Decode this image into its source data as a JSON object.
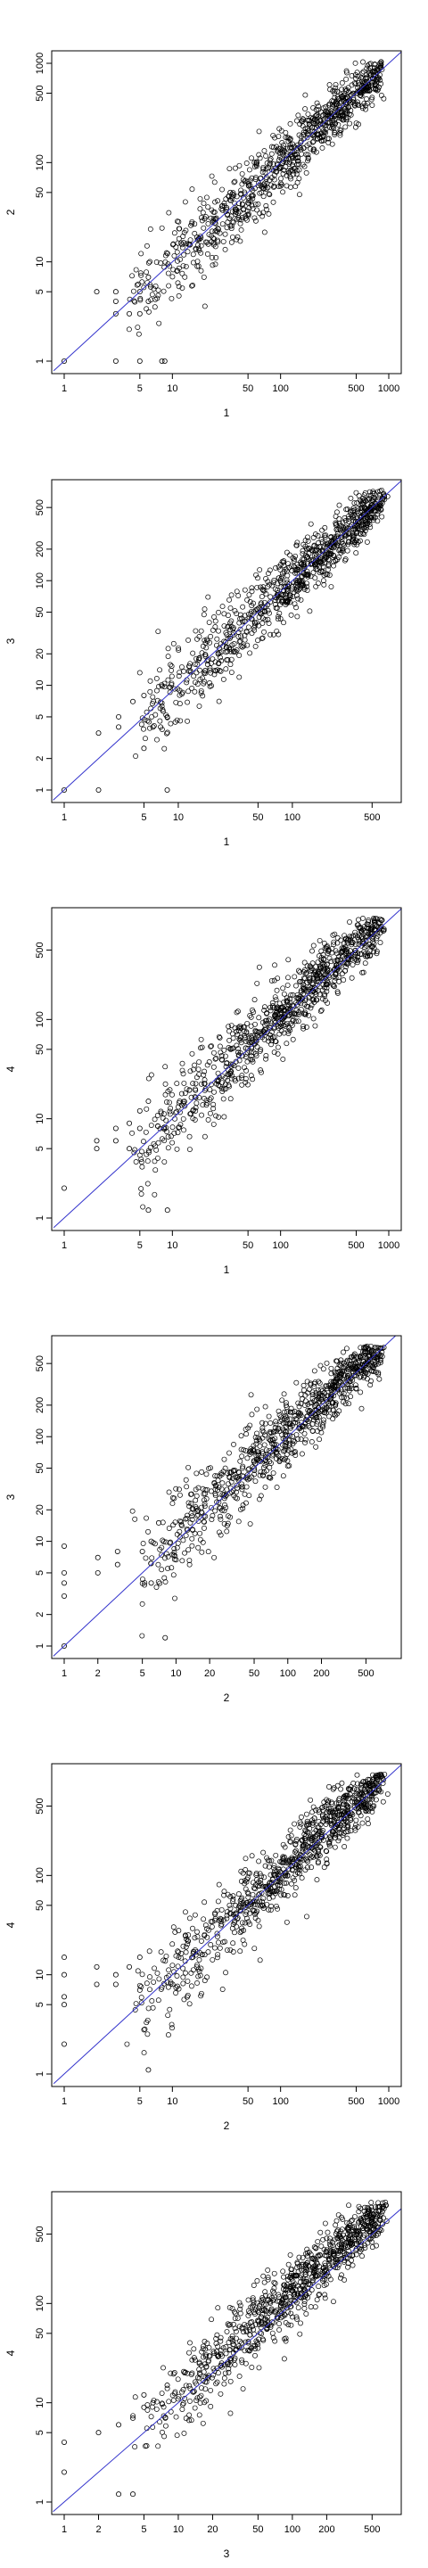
{
  "chart_data": [
    {
      "type": "scatter",
      "scale": "log",
      "title": "",
      "xlabel": "1",
      "ylabel": "2",
      "xlim": [
        1,
        1000
      ],
      "ylim": [
        1,
        1000
      ],
      "xticks": [
        1,
        5,
        10,
        50,
        100,
        500,
        1000
      ],
      "yticks": [
        1,
        5,
        10,
        50,
        100,
        500,
        1000
      ],
      "reference_line": "y = x",
      "reference_line_color": "#3333cc",
      "point_color": "#000000",
      "grid": false,
      "legend": "none",
      "trend": {
        "slope": 1.0,
        "intercept": 0.0,
        "spread": 0.22
      },
      "n_points": 900,
      "outliers": [
        [
          1,
          1
        ],
        [
          3,
          1
        ],
        [
          5,
          1
        ],
        [
          8,
          1
        ],
        [
          8.5,
          1
        ],
        [
          2,
          5
        ],
        [
          3,
          5
        ],
        [
          3,
          4
        ],
        [
          5,
          5
        ],
        [
          6,
          7
        ],
        [
          5,
          3
        ],
        [
          3,
          3
        ],
        [
          4,
          3
        ],
        [
          6,
          4
        ]
      ]
    },
    {
      "type": "scatter",
      "scale": "log",
      "title": "",
      "xlabel": "1",
      "ylabel": "3",
      "xlim": [
        1,
        700
      ],
      "ylim": [
        1,
        700
      ],
      "xticks": [
        1,
        5,
        10,
        50,
        100,
        500
      ],
      "yticks": [
        1,
        2,
        5,
        10,
        20,
        50,
        100,
        200,
        500
      ],
      "reference_line": "y = x",
      "reference_line_color": "#3333cc",
      "point_color": "#000000",
      "grid": false,
      "legend": "none",
      "trend": {
        "slope": 1.0,
        "intercept": 0.0,
        "spread": 0.2
      },
      "n_points": 900,
      "outliers": [
        [
          1,
          1
        ],
        [
          2,
          1
        ],
        [
          8,
          1
        ],
        [
          2,
          3.5
        ],
        [
          3,
          5
        ],
        [
          3,
          4
        ],
        [
          4,
          7
        ],
        [
          5,
          8
        ],
        [
          7,
          4
        ],
        [
          6,
          4
        ],
        [
          8,
          5
        ],
        [
          5,
          2.5
        ]
      ]
    },
    {
      "type": "scatter",
      "scale": "log",
      "title": "",
      "xlabel": "1",
      "ylabel": "4",
      "xlim": [
        1,
        1000
      ],
      "ylim": [
        1,
        1000
      ],
      "xticks": [
        1,
        5,
        10,
        50,
        100,
        500,
        1000
      ],
      "yticks": [
        1,
        5,
        10,
        50,
        100,
        500
      ],
      "reference_line": "y = x",
      "reference_line_color": "#3333cc",
      "point_color": "#000000",
      "grid": false,
      "legend": "none",
      "trend": {
        "slope": 1.02,
        "intercept": 0.0,
        "spread": 0.22
      },
      "n_points": 900,
      "outliers": [
        [
          1,
          2
        ],
        [
          2,
          5
        ],
        [
          2,
          6
        ],
        [
          3,
          8
        ],
        [
          3,
          6
        ],
        [
          4,
          9
        ],
        [
          5,
          12
        ],
        [
          6,
          15
        ],
        [
          6,
          1.2
        ],
        [
          9,
          1.2
        ],
        [
          4,
          5
        ],
        [
          5,
          8
        ]
      ]
    },
    {
      "type": "scatter",
      "scale": "log",
      "title": "",
      "xlabel": "2",
      "ylabel": "3",
      "xlim": [
        1,
        800
      ],
      "ylim": [
        1,
        700
      ],
      "xticks": [
        1,
        2,
        5,
        10,
        20,
        50,
        100,
        200,
        500
      ],
      "yticks": [
        1,
        2,
        5,
        10,
        20,
        50,
        100,
        200,
        500
      ],
      "reference_line": "y = x",
      "reference_line_color": "#3333cc",
      "point_color": "#000000",
      "grid": false,
      "legend": "none",
      "trend": {
        "slope": 1.0,
        "intercept": 0.04,
        "spread": 0.22
      },
      "n_points": 900,
      "outliers": [
        [
          1,
          1
        ],
        [
          1,
          3
        ],
        [
          1,
          4
        ],
        [
          1,
          5
        ],
        [
          1,
          9
        ],
        [
          2,
          5
        ],
        [
          2,
          7
        ],
        [
          3,
          6
        ],
        [
          3,
          8
        ],
        [
          5,
          8
        ],
        [
          6,
          4
        ],
        [
          8,
          1.2
        ],
        [
          6,
          10
        ],
        [
          7,
          15
        ]
      ]
    },
    {
      "type": "scatter",
      "scale": "log",
      "title": "",
      "xlabel": "2",
      "ylabel": "4",
      "xlim": [
        1,
        1000
      ],
      "ylim": [
        1,
        1000
      ],
      "xticks": [
        1,
        5,
        10,
        50,
        100,
        500,
        1000
      ],
      "yticks": [
        1,
        5,
        10,
        50,
        100,
        500
      ],
      "reference_line": "y = x",
      "reference_line_color": "#3333cc",
      "point_color": "#000000",
      "grid": false,
      "legend": "none",
      "trend": {
        "slope": 1.02,
        "intercept": 0.0,
        "spread": 0.22
      },
      "n_points": 900,
      "outliers": [
        [
          1,
          2
        ],
        [
          1,
          5
        ],
        [
          1,
          6
        ],
        [
          1,
          10
        ],
        [
          1,
          15
        ],
        [
          2,
          8
        ],
        [
          2,
          12
        ],
        [
          3,
          8
        ],
        [
          3,
          10
        ],
        [
          4,
          12
        ],
        [
          5,
          15
        ],
        [
          6,
          1.1
        ],
        [
          5,
          7
        ]
      ]
    },
    {
      "type": "scatter",
      "scale": "log",
      "title": "",
      "xlabel": "3",
      "ylabel": "4",
      "xlim": [
        1,
        700
      ],
      "ylim": [
        1,
        1000
      ],
      "xticks": [
        1,
        2,
        5,
        10,
        20,
        50,
        100,
        200,
        500
      ],
      "yticks": [
        1,
        5,
        10,
        50,
        100,
        500
      ],
      "reference_line": "y = x",
      "reference_line_color": "#3333cc",
      "point_color": "#000000",
      "grid": false,
      "legend": "none",
      "trend": {
        "slope": 1.03,
        "intercept": 0.05,
        "spread": 0.22
      },
      "n_points": 900,
      "outliers": [
        [
          1,
          2
        ],
        [
          1,
          4
        ],
        [
          2,
          5
        ],
        [
          3,
          1.2
        ],
        [
          4,
          1.2
        ],
        [
          3,
          6
        ],
        [
          4,
          7
        ],
        [
          5,
          9
        ],
        [
          5,
          12
        ],
        [
          6,
          10
        ],
        [
          8,
          15
        ]
      ]
    }
  ]
}
